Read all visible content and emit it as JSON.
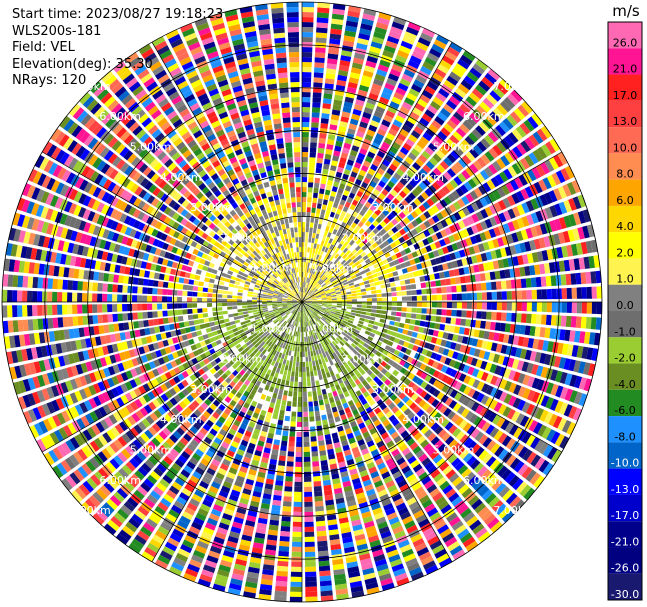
{
  "header": {
    "start_time": "Start time: 2023/08/27 19:18:23",
    "instrument": "WLS200s-181",
    "field": "Field: VEL",
    "elevation": "Elevation(deg): 35.30",
    "nrays": "NRays: 120"
  },
  "colorbar": {
    "unit": "m/s",
    "levels": [
      {
        "label": "26.0",
        "color": "#ff69b4"
      },
      {
        "label": "21.0",
        "color": "#ff1493"
      },
      {
        "label": "17.0",
        "color": "#ff2020"
      },
      {
        "label": "13.0",
        "color": "#ff4040"
      },
      {
        "label": "10.0",
        "color": "#ff6a55"
      },
      {
        "label": "8.0",
        "color": "#ff8c50"
      },
      {
        "label": "6.0",
        "color": "#ffa500"
      },
      {
        "label": "4.0",
        "color": "#ffd700"
      },
      {
        "label": "2.0",
        "color": "#ffff00"
      },
      {
        "label": "1.0",
        "color": "#fff44f"
      },
      {
        "label": "0.0",
        "color": "#808080"
      },
      {
        "label": "-1.0",
        "color": "#6e6e6e"
      },
      {
        "label": "-2.0",
        "color": "#9acd32"
      },
      {
        "label": "-4.0",
        "color": "#6b8e23"
      },
      {
        "label": "-6.0",
        "color": "#228b22"
      },
      {
        "label": "-8.0",
        "color": "#1e90ff"
      },
      {
        "label": "-10.0",
        "color": "#0064c8"
      },
      {
        "label": "-13.0",
        "color": "#0000ff"
      },
      {
        "label": "-17.0",
        "color": "#0000cd"
      },
      {
        "label": "-21.0",
        "color": "#00008b"
      },
      {
        "label": "-26.0",
        "color": "#000080"
      },
      {
        "label": "-30.0",
        "color": "#191970"
      }
    ]
  },
  "chart_data": {
    "type": "heatmap",
    "projection": "polar-ppi",
    "field": "VEL",
    "unit": "m/s",
    "nrays": 120,
    "range_rings_km": [
      1.0,
      2.0,
      3.0,
      4.0,
      5.0,
      6.0,
      7.0
    ],
    "range_labels": {
      "1.0": "1.00km",
      "2.0": "2.00km",
      "3.0": "3.00km",
      "4.0": "4.00km",
      "5.0": "5.00km",
      "6.0": "6.00km",
      "7.0": "7.00km"
    },
    "max_range_km": 7.0,
    "near_field_km": 2.0,
    "near_field_sectors": [
      {
        "azimuth_deg": [
          270,
          90
        ],
        "dominant_range": [
          1.0,
          4.0
        ],
        "description_value_range": "yellow-positive"
      },
      {
        "azimuth_deg": [
          90,
          270
        ],
        "dominant_range": [
          -6.0,
          -2.0
        ],
        "description_value_range": "green-negative"
      }
    ],
    "grid": true
  }
}
